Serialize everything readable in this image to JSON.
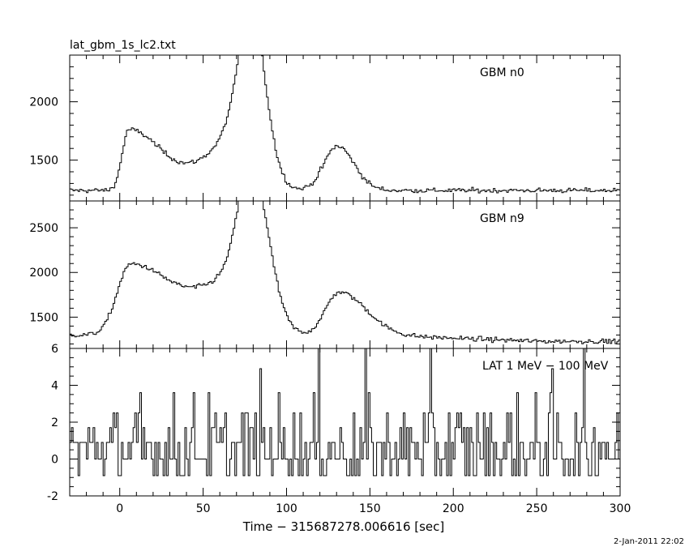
{
  "file_title": "lat_gbm_1s_lc2.txt",
  "timestamp": "2-Jan-2011 22:02",
  "chart_data": [
    {
      "type": "line",
      "series": [
        {
          "name": "GBM n0"
        }
      ],
      "xlabel": "Time − 315687278.006616 [sec]",
      "xlim": [
        -30,
        300
      ],
      "ylim": [
        1150,
        2400
      ],
      "yticks": [
        1500,
        2000
      ],
      "xticks": [
        0,
        50,
        100,
        150,
        200,
        250,
        300
      ],
      "style": "step",
      "baseline": 1240,
      "peaks": [
        {
          "x": 5,
          "y": 1760,
          "rise": 1,
          "decay": 10
        },
        {
          "x": 73,
          "y": 1720,
          "rise": 5,
          "decay": 6
        },
        {
          "x": 79,
          "y": 2350,
          "rise": 2,
          "decay": 4
        },
        {
          "x": 130,
          "y": 1620,
          "rise": 2,
          "decay": 5
        }
      ]
    },
    {
      "type": "line",
      "series": [
        {
          "name": "GBM n9"
        }
      ],
      "xlabel": "Time − 315687278.006616 [sec]",
      "xlim": [
        -30,
        300
      ],
      "ylim": [
        1150,
        2800
      ],
      "yticks": [
        1500,
        2000,
        2500
      ],
      "xticks": [
        0,
        50,
        100,
        150,
        200,
        250,
        300
      ],
      "style": "step",
      "baseline": 1300,
      "peaks": [
        {
          "x": 6,
          "y": 2080,
          "rise": 2,
          "decay": 12
        },
        {
          "x": 73,
          "y": 1950,
          "rise": 6,
          "decay": 6
        },
        {
          "x": 79,
          "y": 2650,
          "rise": 2,
          "decay": 5
        },
        {
          "x": 131,
          "y": 1780,
          "rise": 2,
          "decay": 8
        }
      ]
    },
    {
      "type": "line",
      "series": [
        {
          "name": "LAT 1 MeV − 100 MeV"
        }
      ],
      "xlabel": "Time − 315687278.006616 [sec]",
      "xlim": [
        -30,
        300
      ],
      "ylim": [
        -2,
        6
      ],
      "yticks": [
        -2,
        0,
        2,
        4,
        6
      ],
      "xticks": [
        0,
        50,
        100,
        150,
        200,
        250,
        300
      ],
      "style": "step"
    }
  ]
}
